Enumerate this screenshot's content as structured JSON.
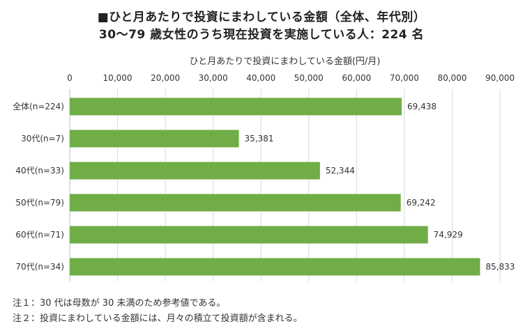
{
  "title_line1": "■ひと月あたりで投資にまわしている金額（全体、年代別）",
  "title_line2": "30〜79 歳女性のうち現在投資を実施している人：224 名",
  "notes": [
    "注１：30 代は母数が 30 未満のため参考値である。",
    "注２：投資にまわしている金額には、月々の積立て投資額が含まれる。"
  ],
  "chart_data": {
    "type": "bar",
    "orientation": "horizontal",
    "axis_label": "ひと月あたりで投資にまわしている金額(円/月)",
    "xlim": [
      0,
      90000
    ],
    "ticks": [
      0,
      10000,
      20000,
      30000,
      40000,
      50000,
      60000,
      70000,
      80000,
      90000
    ],
    "tick_labels": [
      "0",
      "10,000",
      "20,000",
      "30,000",
      "40,000",
      "50,000",
      "60,000",
      "70,000",
      "80,000",
      "90,000"
    ],
    "categories": [
      "全体(n=224)",
      "30代(n=7)",
      "40代(n=33)",
      "50代(n=79)",
      "60代(n=71)",
      "70代(n=34)"
    ],
    "values": [
      69438,
      35381,
      52344,
      69242,
      74929,
      85833
    ],
    "value_labels": [
      "69,438",
      "35,381",
      "52,344",
      "69,242",
      "74,929",
      "85,833"
    ],
    "bar_color": "#70ad47",
    "grid": true
  }
}
